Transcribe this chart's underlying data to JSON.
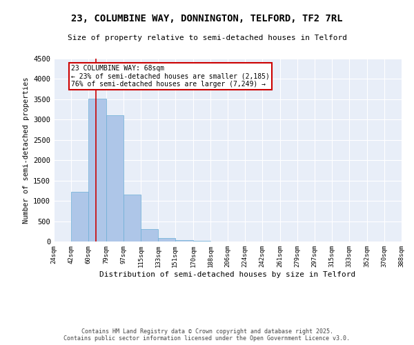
{
  "title_line1": "23, COLUMBINE WAY, DONNINGTON, TELFORD, TF2 7RL",
  "title_line2": "Size of property relative to semi-detached houses in Telford",
  "xlabel": "Distribution of semi-detached houses by size in Telford",
  "ylabel": "Number of semi-detached properties",
  "bar_color": "#aec6e8",
  "bar_edge_color": "#6aaed6",
  "bin_edges": [
    24,
    42,
    60,
    79,
    97,
    115,
    133,
    151,
    170,
    188,
    206,
    224,
    242,
    261,
    279,
    297,
    315,
    333,
    352,
    370,
    388
  ],
  "bar_heights": [
    0,
    1220,
    3520,
    3100,
    1150,
    300,
    80,
    30,
    15,
    8,
    5,
    4,
    3,
    2,
    2,
    1,
    1,
    1,
    0,
    0
  ],
  "x_tick_labels": [
    "24sqm",
    "42sqm",
    "60sqm",
    "79sqm",
    "97sqm",
    "115sqm",
    "133sqm",
    "151sqm",
    "170sqm",
    "188sqm",
    "206sqm",
    "224sqm",
    "242sqm",
    "261sqm",
    "279sqm",
    "297sqm",
    "315sqm",
    "333sqm",
    "352sqm",
    "370sqm",
    "388sqm"
  ],
  "ylim": [
    0,
    4500
  ],
  "yticks": [
    0,
    500,
    1000,
    1500,
    2000,
    2500,
    3000,
    3500,
    4000,
    4500
  ],
  "property_size": 68,
  "vline_color": "#cc0000",
  "annotation_text": "23 COLUMBINE WAY: 68sqm\n← 23% of semi-detached houses are smaller (2,185)\n76% of semi-detached houses are larger (7,249) →",
  "annotation_box_color": "#cc0000",
  "bg_color": "#e8eef8",
  "footer_line1": "Contains HM Land Registry data © Crown copyright and database right 2025.",
  "footer_line2": "Contains public sector information licensed under the Open Government Licence v3.0."
}
